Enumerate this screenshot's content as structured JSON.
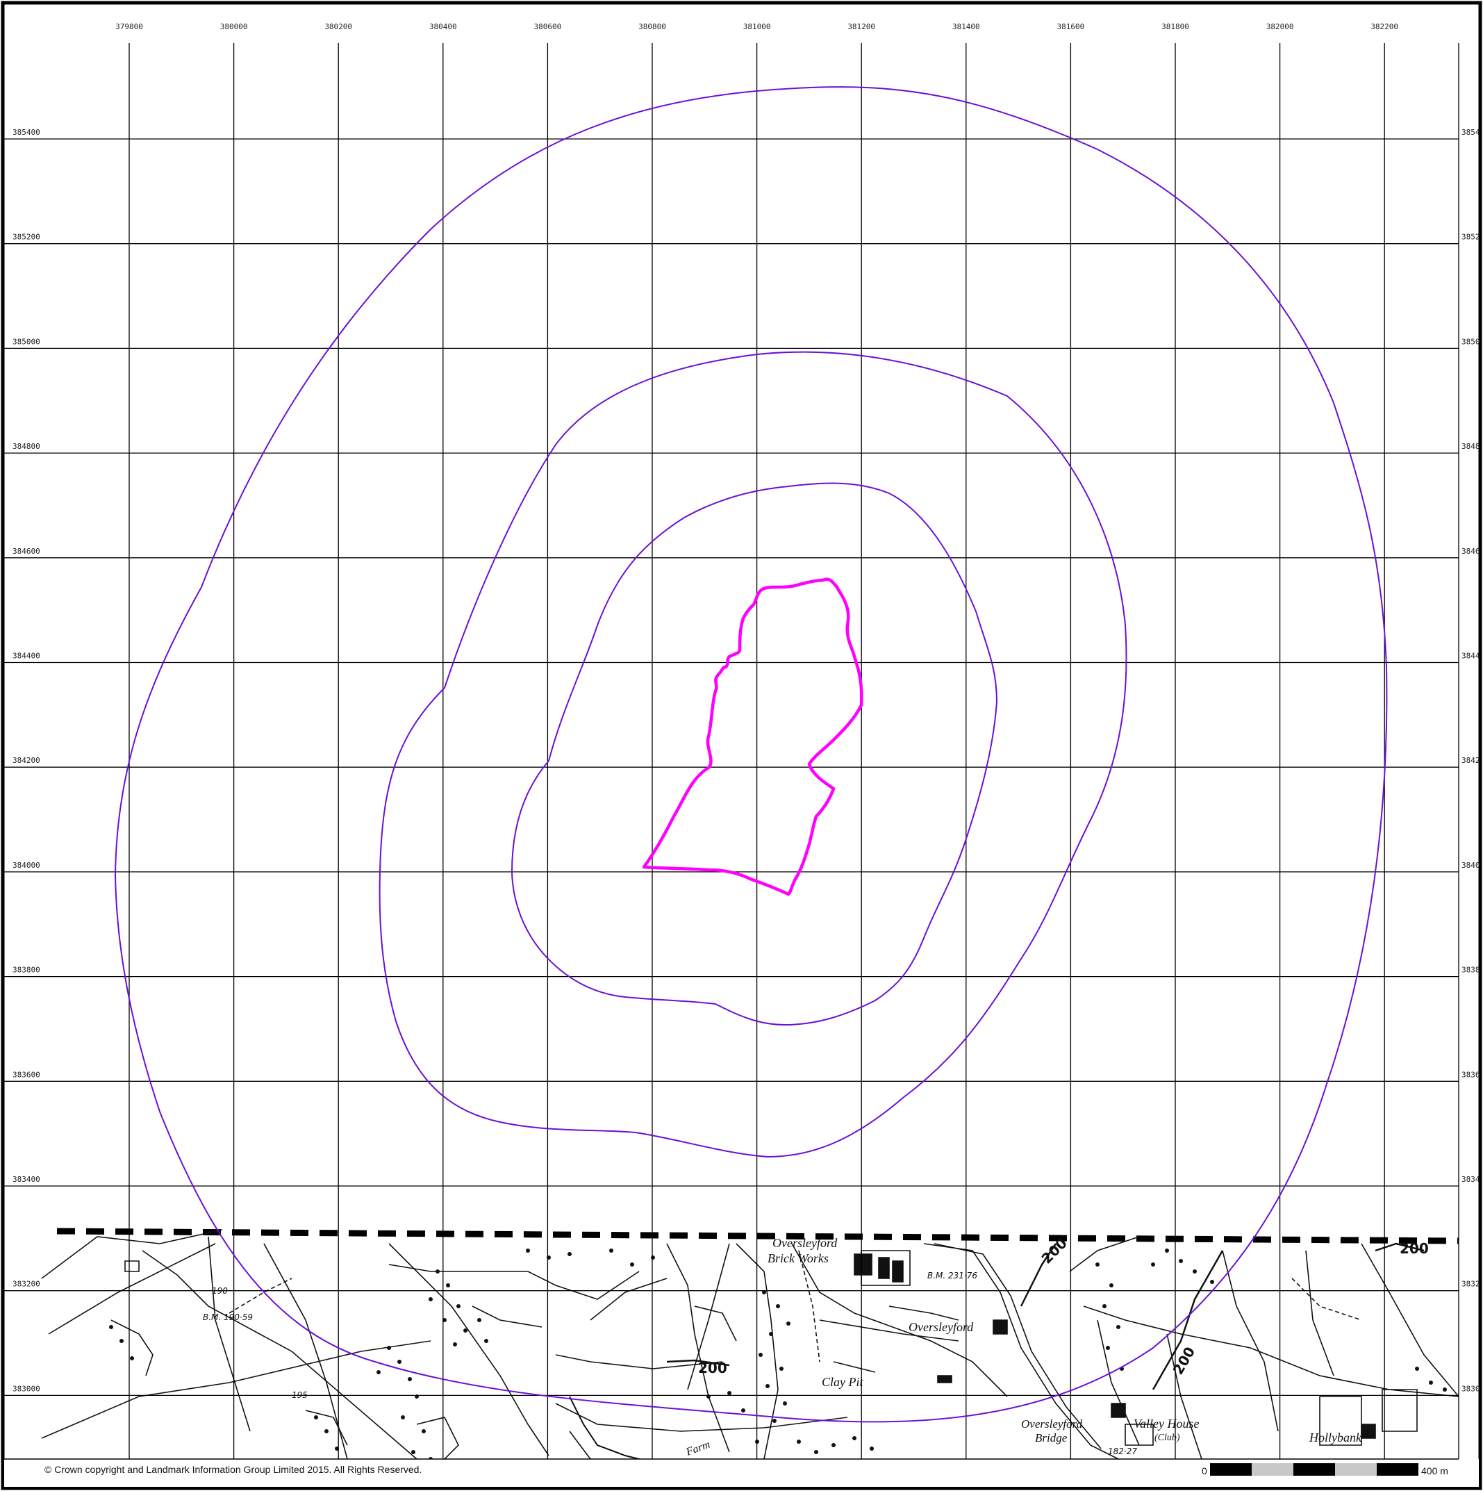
{
  "map": {
    "easting_labels": [
      "379800",
      "380000",
      "380200",
      "380400",
      "380600",
      "380800",
      "381000",
      "381200",
      "381400",
      "381600",
      "381800",
      "382000",
      "382200"
    ],
    "northing_labels": [
      "385400",
      "385200",
      "385000",
      "384800",
      "384600",
      "384400",
      "384200",
      "384000",
      "383800",
      "383600",
      "383400",
      "383200",
      "383000"
    ],
    "northing_labels_right": [
      "3854",
      "3852",
      "3850",
      "3848",
      "3846",
      "3844",
      "3842",
      "3840",
      "3838",
      "3836",
      "3834",
      "3832",
      "3830"
    ],
    "place_labels": {
      "brick_works_1": "Oversleyford",
      "brick_works_2": "Brick Works",
      "oversleyford": "Oversleyford",
      "clay_pit": "Clay Pit",
      "bridge_1": "Oversleyford",
      "bridge_2": "Bridge",
      "valley_house": "Valley House",
      "club": "(Club)",
      "hollybank": "Hollybank",
      "farm": "Farm"
    },
    "benchmarks": {
      "bm1": "B.M. 190·59",
      "bm2": "B.M. 231·76",
      "bm3": "182·27",
      "spot1": "190",
      "spot2": "195"
    },
    "contour_labels": [
      "200",
      "200",
      "200",
      "200"
    ],
    "boundary_color": "#ff00ff",
    "buffer_color": "#6a11d6",
    "credit": "© Crown copyright and Landmark Information Group Limited 2015.  All Rights Reserved.",
    "scale": {
      "start": "0",
      "end": "400 m"
    }
  }
}
